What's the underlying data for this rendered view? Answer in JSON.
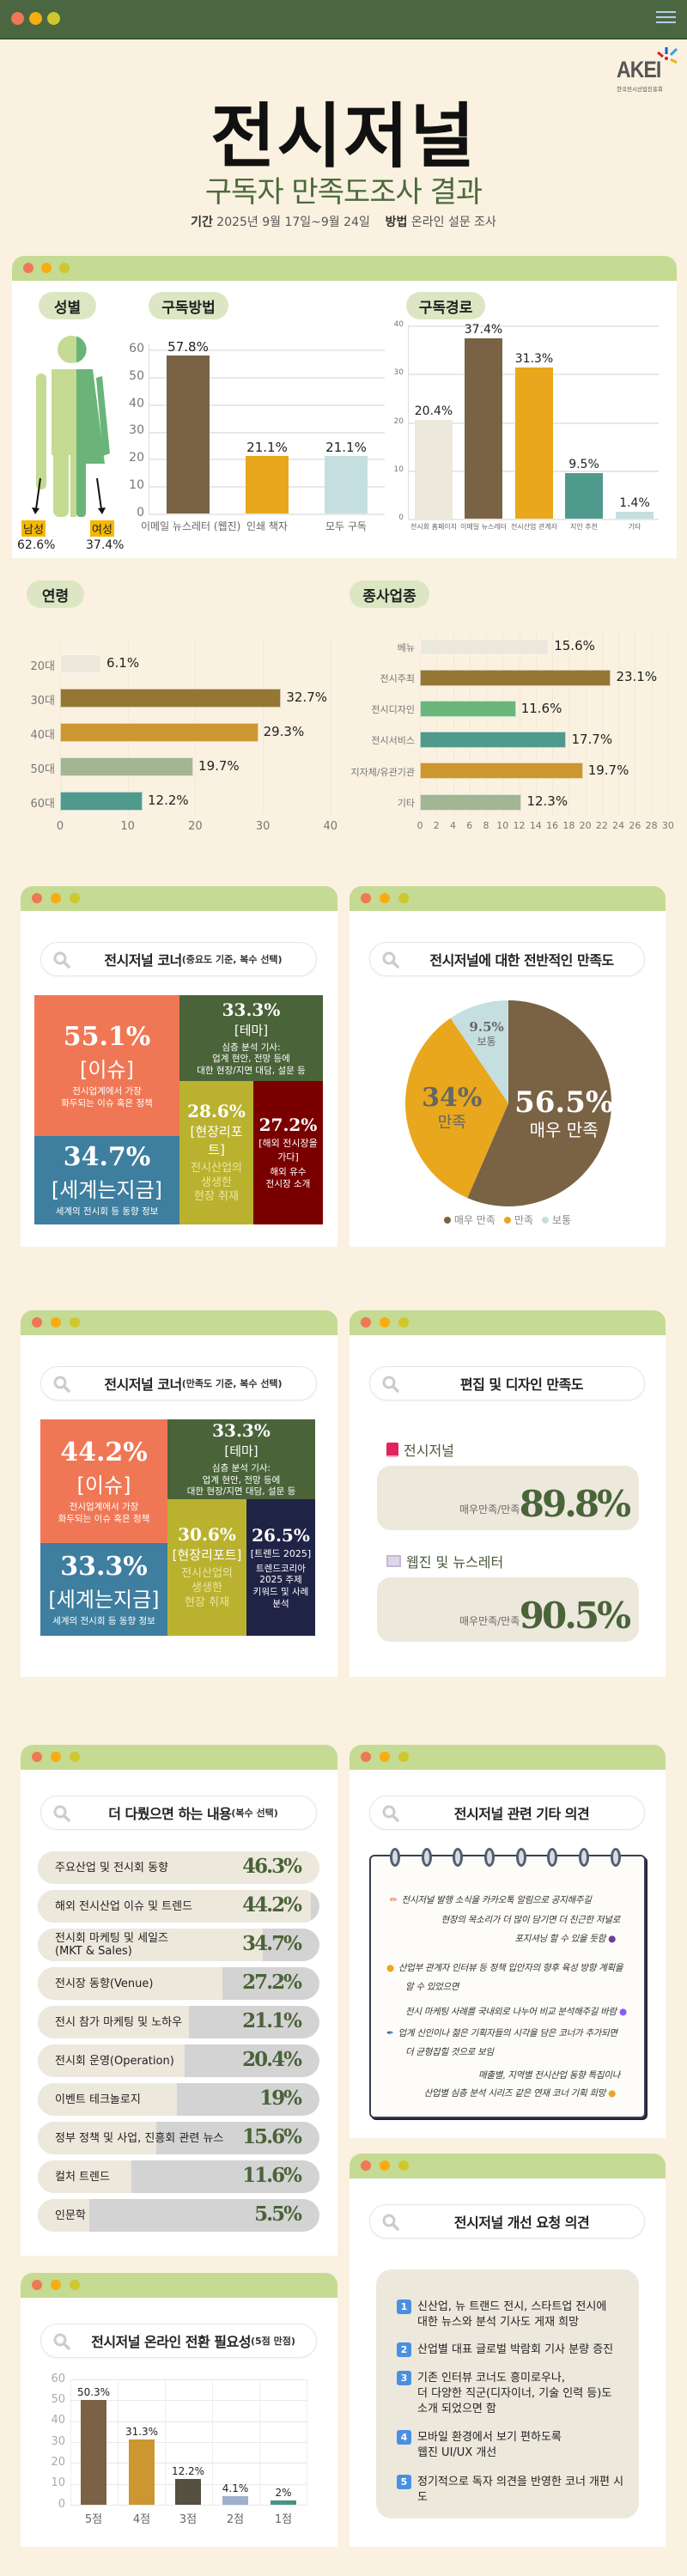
{
  "header": {
    "menu_icon": "hamburger-icon",
    "logo_text": "AKEI",
    "logo_subtext": "한국전시산업진흥회"
  },
  "title": {
    "main": "전시저널",
    "subtitle": "구독자 만족도조사 결과",
    "period_label": "기간",
    "period_value": "2025년 9월 17일~9월 24일",
    "method_label": "방법",
    "method_value": "온라인 설문 조사"
  },
  "colors": {
    "topbar": "#4a6741",
    "card_header": "#c5da93",
    "background": "#faf1e0",
    "accent_green": "#4a6339"
  },
  "gender": {
    "title": "성별",
    "male_label": "남성",
    "male_value": "62.6%",
    "female_label": "여성",
    "female_value": "37.4%"
  },
  "chart_data": [
    {
      "id": "method",
      "type": "bar",
      "title": "구독방법",
      "categories": [
        "이메일 뉴스레터 (웹진)",
        "인쇄 책자",
        "모두 구독"
      ],
      "values": [
        57.8,
        21.1,
        21.1
      ],
      "unit": "%",
      "ylim": [
        0,
        60
      ],
      "yticks": [
        0,
        10,
        20,
        30,
        40,
        50,
        60
      ],
      "grid": true,
      "colors": [
        "#7a6244",
        "#e8a71c",
        "#c5dfe0"
      ]
    },
    {
      "id": "path",
      "type": "bar",
      "title": "구독경로",
      "categories": [
        "전시회 홈페이지",
        "이메일 뉴스레터",
        "전시산업 관계자",
        "지인 추천",
        "기타"
      ],
      "values": [
        20.4,
        37.4,
        31.3,
        9.5,
        1.4
      ],
      "unit": "%",
      "ylim": [
        0,
        40
      ],
      "yticks": [
        0,
        10,
        20,
        30,
        40
      ],
      "grid": true,
      "colors": [
        "#ede8dc",
        "#7a6244",
        "#e8a71c",
        "#4f9a8c",
        "#c5dfe0"
      ]
    },
    {
      "id": "age",
      "type": "bar",
      "orientation": "horizontal",
      "title": "연령",
      "categories": [
        "20대",
        "30대",
        "40대",
        "50대",
        "60대"
      ],
      "values": [
        6.1,
        32.7,
        29.3,
        19.7,
        12.2
      ],
      "unit": "%",
      "xlim": [
        0,
        40
      ],
      "xticks": [
        0,
        10,
        20,
        30,
        40
      ],
      "colors": [
        "#ede8dc",
        "#967633",
        "#cc9630",
        "#a3b592",
        "#4f9a8c"
      ]
    },
    {
      "id": "industry",
      "type": "bar",
      "orientation": "horizontal",
      "title": "종사업종",
      "categories": [
        "베뉴",
        "전시주최",
        "전시디자인",
        "전시서비스",
        "지자체/유관기관",
        "기타"
      ],
      "values": [
        15.6,
        23.1,
        11.6,
        17.7,
        19.7,
        12.3
      ],
      "unit": "%",
      "xlim": [
        0,
        30
      ],
      "xticks": [
        0,
        2,
        4,
        6,
        8,
        10,
        12,
        14,
        16,
        18,
        20,
        22,
        24,
        26,
        28,
        30
      ],
      "colors": [
        "#ede8dc",
        "#967633",
        "#6bb77b",
        "#4f9a8c",
        "#cc9630",
        "#a3b592"
      ]
    },
    {
      "id": "overall",
      "type": "pie",
      "title": "전시저널에 대한 전반적인 만족도",
      "categories": [
        "매우 만족",
        "만족",
        "보통"
      ],
      "values": [
        56.5,
        34,
        9.5
      ],
      "unit": "%",
      "legend": "bottom",
      "colors": [
        "#7a6244",
        "#e8a71c",
        "#c5dfe0"
      ]
    },
    {
      "id": "wishlist",
      "type": "bar",
      "orientation": "horizontal",
      "title": "더 다뤘으면 하는 내용",
      "title_note": "(복수 선택)",
      "categories": [
        "주요산업 및 전시회 동향",
        "해외 전시산업 이슈 및 트렌드",
        "전시회 마케팅 및 세일즈\n(MKT & Sales)",
        "전시장 동향(Venue)",
        "전시 참가 마케팅 및 노하우",
        "전시회 운영(Operation)",
        "이벤트 테크놀로지",
        "정부 정책 및 사업, 진흥회 관련 뉴스",
        "컬처 트렌드",
        "인문학"
      ],
      "values": [
        46.3,
        44.2,
        34.7,
        27.2,
        21.1,
        20.4,
        19,
        15.6,
        11.6,
        5.5
      ],
      "unit": "%"
    },
    {
      "id": "online",
      "type": "bar",
      "title": "전시저널 온라인 전환 필요성",
      "title_note": "(5점 만점)",
      "categories": [
        "5점",
        "4점",
        "3점",
        "2점",
        "1점"
      ],
      "values": [
        50.3,
        31.3,
        12.2,
        4.1,
        2
      ],
      "unit": "%",
      "ylim": [
        0,
        60
      ],
      "yticks": [
        0,
        10,
        20,
        30,
        40,
        50,
        60
      ],
      "grid": true,
      "colors": [
        "#7b6244",
        "#cc9630",
        "#555040",
        "#9fb0cc",
        "#4a9383"
      ]
    }
  ],
  "treemap_importance": {
    "title": "전시저널 코너",
    "note": "(중요도 기준, 복수 선택)",
    "cells": [
      {
        "pct": "55.1%",
        "name": "[이슈]",
        "desc": "전시업계에서 가장\n화두되는 이슈 혹은 정책",
        "color": "#f07755"
      },
      {
        "pct": "34.7%",
        "name": "[세계는지금]",
        "desc": "세계의 전시회 등 동향 정보",
        "color": "#3e7e9f"
      },
      {
        "pct": "33.3%",
        "name": "[테마]",
        "desc": "심층 분석 기사:\n업계 현안, 전망 등에\n대한 현장/지면 대담, 설문 등",
        "color": "#4a6339"
      },
      {
        "pct": "28.6%",
        "name": "[현장리포트]",
        "desc": "전시산업의\n생생한\n현장 취재",
        "color": "#bab22f"
      },
      {
        "pct": "27.2%",
        "name": "[해외 전시장을\n가다]",
        "desc": "해외 유수\n전시장 소개",
        "color": "#7a0000"
      }
    ]
  },
  "overall_pie_labels": {
    "legend_title": ""
  },
  "treemap_satisfaction": {
    "title": "전시저널 코너",
    "note": "(만족도 기준, 복수 선택)",
    "cells": [
      {
        "pct": "44.2%",
        "name": "[이슈]",
        "desc": "전시업계에서 가장\n화두되는 이슈 혹은 정책",
        "color": "#f07755"
      },
      {
        "pct": "33.3%",
        "name": "[세계는지금]",
        "desc": "세계의 전시회 등 동향 정보",
        "color": "#3e7e9f"
      },
      {
        "pct": "33.3%",
        "name": "[테마]",
        "desc": "심층 분석 기사:\n업계 현안, 전망 등에\n대한 현장/지면 대담, 설문 등",
        "color": "#4a6339"
      },
      {
        "pct": "30.6%",
        "name": "[현장리포트]",
        "desc": "전시산업의\n생생한\n현장 취재",
        "color": "#bab22f"
      },
      {
        "pct": "26.5%",
        "name": "[트렌드 2025]",
        "desc": "트렌드코리아\n2025 주제\n키워드 및 사례\n분석",
        "color": "#1f2447"
      }
    ]
  },
  "design": {
    "title": "편집 및 디자인 만족도",
    "items": [
      {
        "icon": "book-icon",
        "label": "전시저널",
        "key": "매우만족/만족",
        "value": "89.8%"
      },
      {
        "icon": "newspaper-icon",
        "label": "웹진 및 뉴스레터",
        "key": "매우만족/만족",
        "value": "90.5%"
      }
    ]
  },
  "opinions": {
    "title": "전시저널 관련 기타 의견",
    "lines": [
      "전시저널 발행 소식을 카카오톡 알림으로 공지해주길",
      "현장의 목소리가 더 많이 담기면 더 친근한 저널로",
      "포지셔닝 할 수 있을 듯함",
      "산업부 관계자 인터뷰 등 정책 입안자의 향후 육성 방향 계획을",
      "알 수 있었으면",
      "전시 마케팅 사례를 국내외로 나누어 비교 분석해주길 바람",
      "업계 신인이나 젊은 기획자들의 시각을 담은 코너가 추가되면",
      "더 균형잡힐 것으로 보임",
      "매출별, 지역별 전시산업 동향 특집이나",
      "산업별 심층 분석 시리즈 같은 연재 코너 기획 희망"
    ]
  },
  "improvements": {
    "title": "전시저널 개선 요청 의견",
    "items": [
      "신산업, 뉴 트랜드 전시, 스타트업 전시에\n대한 뉴스와 분석 기사도 게재 희망",
      "산업별 대표 글로벌 박람회 기사 분량 증진",
      "기존 인터뷰 코너도 흥미로우나,\n더 다양한 직군(디자이너, 기술 인력 등)도\n소개 되었으면 함",
      "모바일 환경에서 보기 편하도록\n웹진 UI/UX 개선",
      "정기적으로 독자 의견을 반영한 코너 개편 시도"
    ]
  }
}
